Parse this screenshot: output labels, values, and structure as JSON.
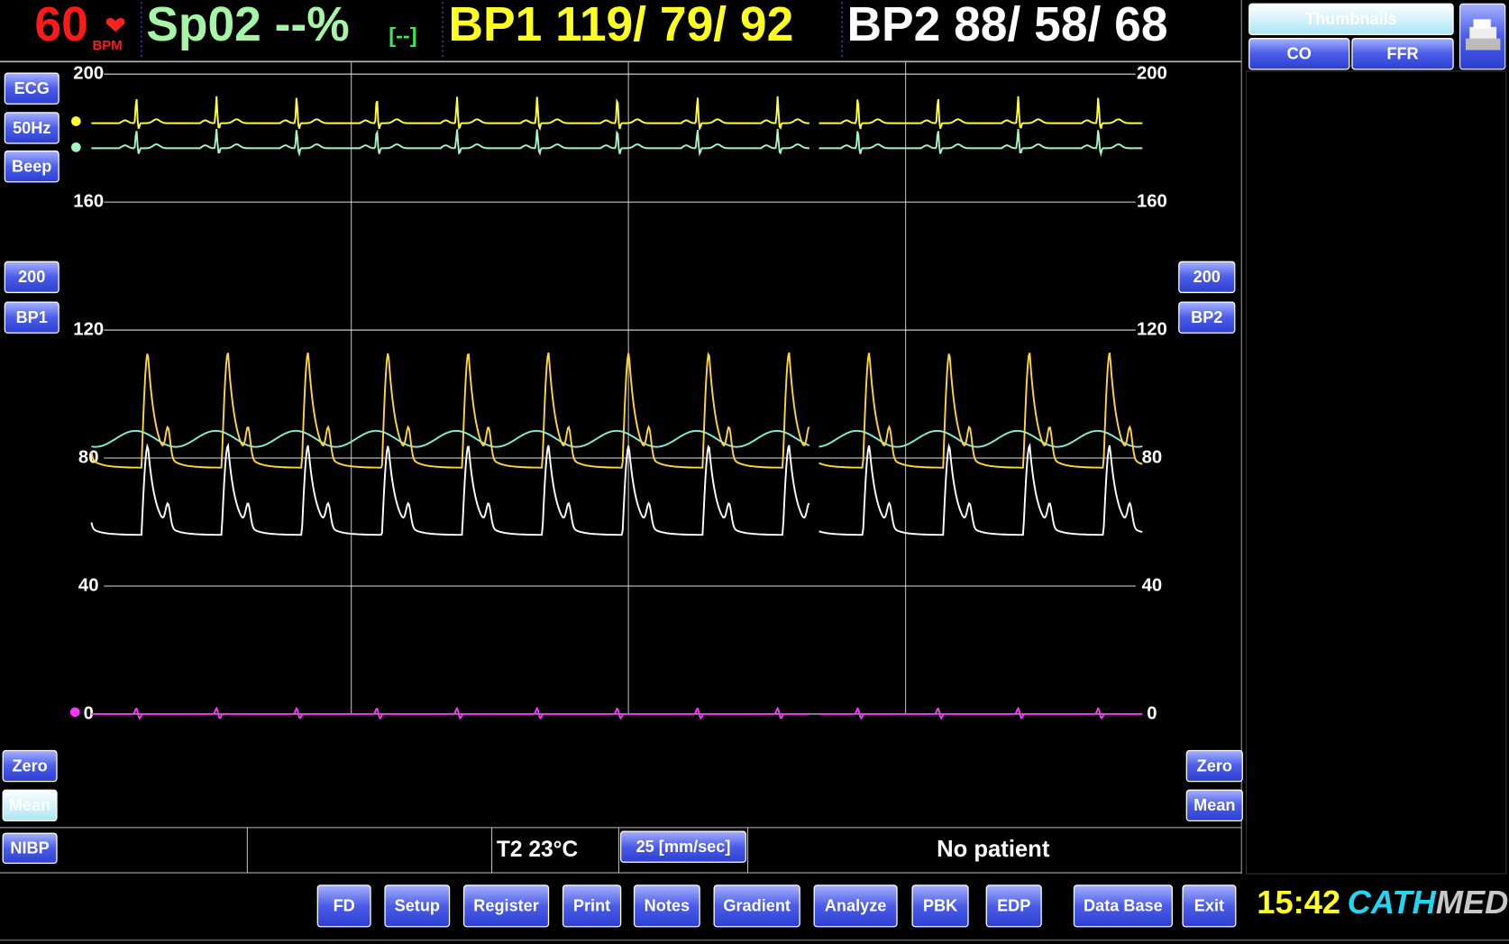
{
  "header": {
    "heart_rate": "60",
    "heart_rate_unit": "BPM",
    "spo2": "Sp02 --%",
    "spo2_status": "[--]",
    "bp1": "BP1 119/ 79/ 92",
    "bp2": "BP2 88/ 58/ 68"
  },
  "plot": {
    "yticks": [
      0,
      40,
      80,
      120,
      160,
      200
    ]
  },
  "left_buttons": [
    "ECG",
    "50Hz",
    "Beep",
    "200",
    "BP1",
    "Zero",
    "Mean"
  ],
  "right_buttons": [
    "200",
    "BP2",
    "Zero",
    "Mean"
  ],
  "status": {
    "nibp": "NIBP",
    "temperature": "T2  23°C",
    "speed": "25 [mm/sec]",
    "patient": "No patient"
  },
  "side_panel": {
    "thumbnails": "Thumbnails",
    "buttons": [
      "CO",
      "FFR"
    ]
  },
  "toolbar": [
    "FD",
    "Setup",
    "Register",
    "Print",
    "Notes",
    "Gradient",
    "Analyze",
    "PBK",
    "EDP",
    "Data Base",
    "Exit"
  ],
  "clock": "15:42",
  "logo": {
    "part1": "CATH",
    "part2": "MED"
  }
}
